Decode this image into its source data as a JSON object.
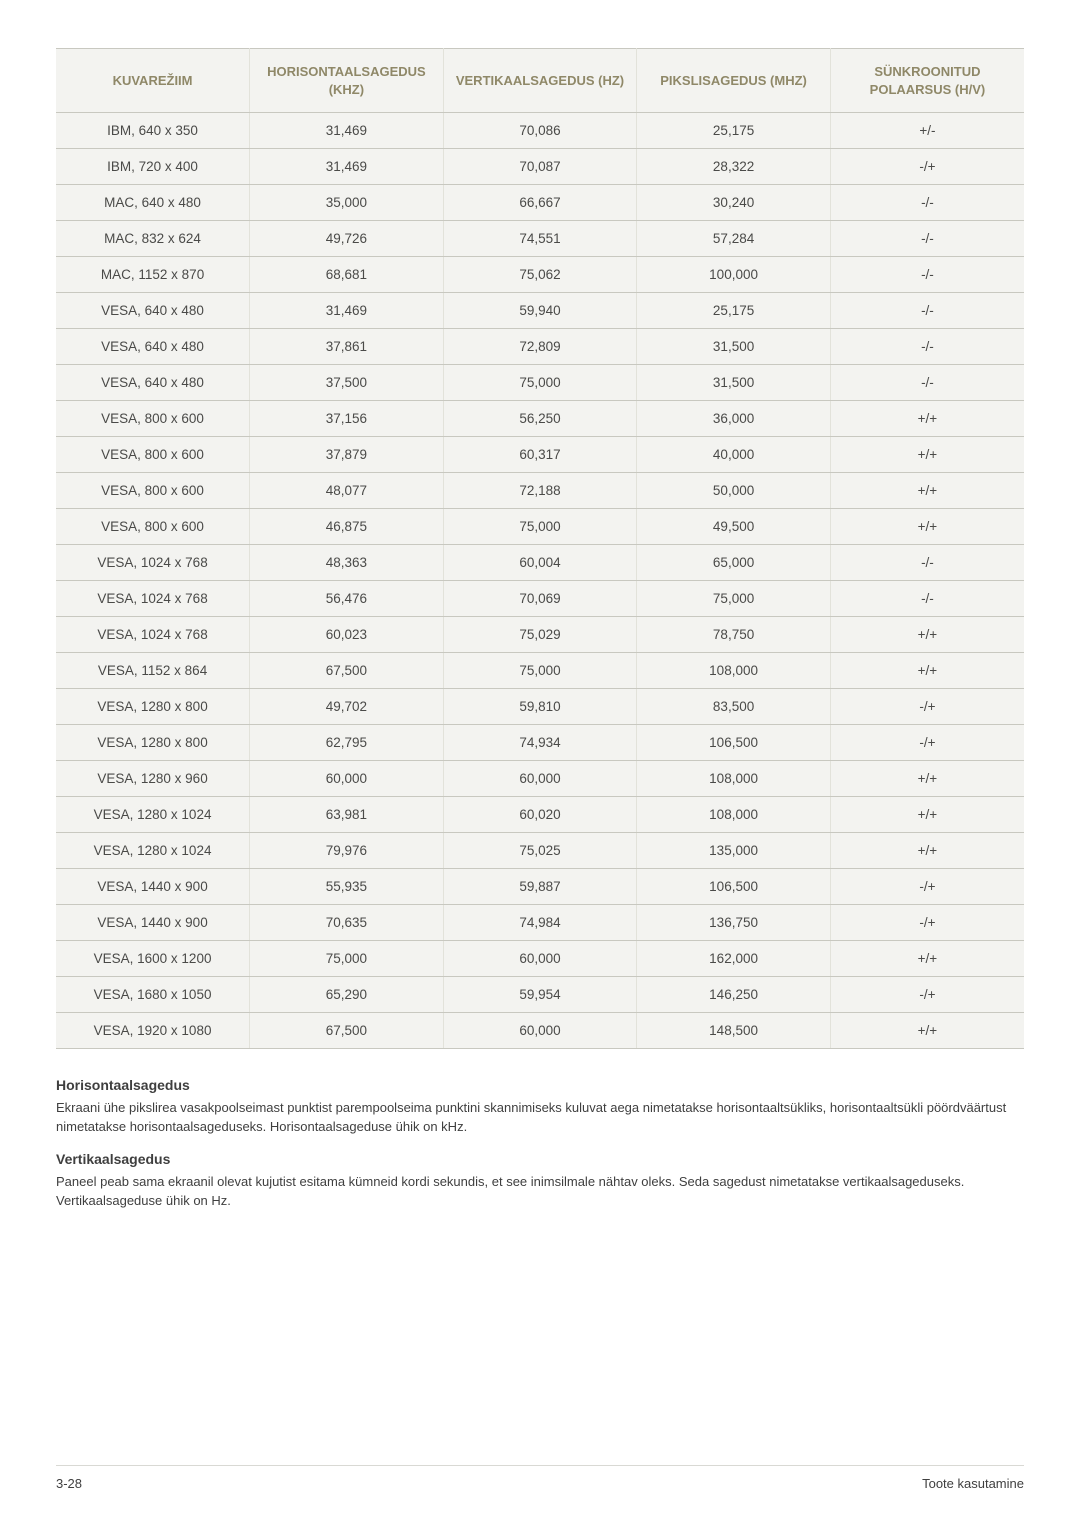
{
  "table": {
    "columns": [
      {
        "label": "KUVAREŽIIM"
      },
      {
        "label": "HORISONTAALSAGEDUS (KHZ)"
      },
      {
        "label": "VERTIKAALSAGEDUS (HZ)"
      },
      {
        "label": "PIKSLISAGEDUS (MHZ)"
      },
      {
        "label": "SÜNKROONITUD POLAARSUS (H/V)"
      }
    ],
    "header_color": "#8f8868",
    "header_bg": "#f3f3f0",
    "cell_bg": "#f3f3f0",
    "border_color": "#c8c8c0",
    "rows": [
      [
        "IBM, 640 x 350",
        "31,469",
        "70,086",
        "25,175",
        "+/-"
      ],
      [
        "IBM, 720 x 400",
        "31,469",
        "70,087",
        "28,322",
        "-/+"
      ],
      [
        "MAC, 640 x 480",
        "35,000",
        "66,667",
        "30,240",
        "-/-"
      ],
      [
        "MAC, 832 x 624",
        "49,726",
        "74,551",
        "57,284",
        "-/-"
      ],
      [
        "MAC, 1152 x 870",
        "68,681",
        "75,062",
        "100,000",
        "-/-"
      ],
      [
        "VESA, 640 x 480",
        "31,469",
        "59,940",
        "25,175",
        "-/-"
      ],
      [
        "VESA, 640 x 480",
        "37,861",
        "72,809",
        "31,500",
        "-/-"
      ],
      [
        "VESA, 640 x 480",
        "37,500",
        "75,000",
        "31,500",
        "-/-"
      ],
      [
        "VESA, 800 x 600",
        "37,156",
        "56,250",
        "36,000",
        "+/+"
      ],
      [
        "VESA, 800 x 600",
        "37,879",
        "60,317",
        "40,000",
        "+/+"
      ],
      [
        "VESA, 800 x 600",
        "48,077",
        "72,188",
        "50,000",
        "+/+"
      ],
      [
        "VESA, 800 x 600",
        "46,875",
        "75,000",
        "49,500",
        "+/+"
      ],
      [
        "VESA, 1024 x 768",
        "48,363",
        "60,004",
        "65,000",
        "-/-"
      ],
      [
        "VESA, 1024 x 768",
        "56,476",
        "70,069",
        "75,000",
        "-/-"
      ],
      [
        "VESA, 1024 x 768",
        "60,023",
        "75,029",
        "78,750",
        "+/+"
      ],
      [
        "VESA, 1152 x 864",
        "67,500",
        "75,000",
        "108,000",
        "+/+"
      ],
      [
        "VESA, 1280 x 800",
        "49,702",
        "59,810",
        "83,500",
        "-/+"
      ],
      [
        "VESA, 1280 x 800",
        "62,795",
        "74,934",
        "106,500",
        "-/+"
      ],
      [
        "VESA, 1280 x 960",
        "60,000",
        "60,000",
        "108,000",
        "+/+"
      ],
      [
        "VESA, 1280 x 1024",
        "63,981",
        "60,020",
        "108,000",
        "+/+"
      ],
      [
        "VESA, 1280 x 1024",
        "79,976",
        "75,025",
        "135,000",
        "+/+"
      ],
      [
        "VESA, 1440 x 900",
        "55,935",
        "59,887",
        "106,500",
        "-/+"
      ],
      [
        "VESA, 1440 x 900",
        "70,635",
        "74,984",
        "136,750",
        "-/+"
      ],
      [
        "VESA, 1600 x 1200",
        "75,000",
        "60,000",
        "162,000",
        "+/+"
      ],
      [
        "VESA, 1680 x 1050",
        "65,290",
        "59,954",
        "146,250",
        "-/+"
      ],
      [
        "VESA, 1920 x 1080",
        "67,500",
        "60,000",
        "148,500",
        "+/+"
      ]
    ]
  },
  "sections": [
    {
      "heading": "Horisontaalsagedus",
      "para": "Ekraani ühe pikslirea vasakpoolseimast punktist parempoolseima punktini skannimiseks kuluvat aega nimetatakse horisontaaltsükliks, horisontaaltsükli pöördväärtust nimetatakse horisontaalsageduseks. Horisontaalsageduse ühik on kHz."
    },
    {
      "heading": "Vertikaalsagedus",
      "para": "Paneel peab sama ekraanil olevat kujutist esitama kümneid kordi sekundis, et see inimsilmale nähtav oleks. Seda sagedust nimetatakse vertikaalsageduseks. Vertikaalsageduse ühik on Hz."
    }
  ],
  "footer": {
    "left": "3-28",
    "right": "Toote kasutamine"
  }
}
